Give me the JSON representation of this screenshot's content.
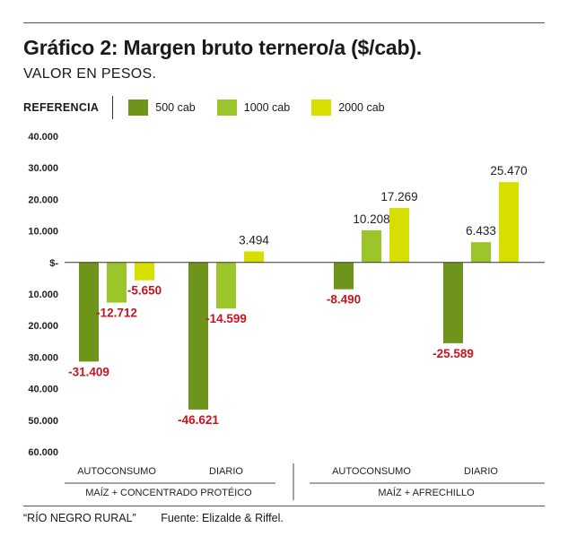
{
  "header": {
    "title": "Gráfico 2: Margen bruto ternero/a ($/cab).",
    "subtitle": "VALOR EN PESOS."
  },
  "legend": {
    "label": "REFERENCIA",
    "items": [
      {
        "name": "500 cab",
        "color": "#6f941b"
      },
      {
        "name": "1000 cab",
        "color": "#9bc52a"
      },
      {
        "name": "2000 cab",
        "color": "#d6df00"
      }
    ]
  },
  "footer": {
    "credit": "“RÍO NEGRO RURAL”",
    "source": "Fuente: Elizalde & Riffel."
  },
  "colors": {
    "positive_label": "#222222",
    "negative_label": "#c8141e"
  },
  "chart_data": {
    "type": "bar",
    "ylim": [
      -60000,
      40000
    ],
    "yticks": [
      {
        "value": 40000,
        "label": "40.000"
      },
      {
        "value": 30000,
        "label": "30.000"
      },
      {
        "value": 20000,
        "label": "20.000"
      },
      {
        "value": 10000,
        "label": "10.000"
      },
      {
        "value": 0,
        "label": "$-"
      },
      {
        "value": -10000,
        "label": "10.000"
      },
      {
        "value": -20000,
        "label": "20.000"
      },
      {
        "value": -30000,
        "label": "30.000"
      },
      {
        "value": -40000,
        "label": "40.000"
      },
      {
        "value": -50000,
        "label": "50.000"
      },
      {
        "value": -60000,
        "label": "60.000"
      }
    ],
    "groups": [
      {
        "label": "MAÍZ + CONCENTRADO PROTÉICO",
        "categories": [
          "AUTOCONSUMO",
          "DIARIO"
        ]
      },
      {
        "label": "MAÍZ + AFRECHILLO",
        "categories": [
          "AUTOCONSUMO",
          "DIARIO"
        ]
      }
    ],
    "categories": [
      "AUTOCONSUMO",
      "DIARIO",
      "AUTOCONSUMO",
      "DIARIO"
    ],
    "series": [
      {
        "name": "500 cab",
        "values": [
          -31409,
          -46621,
          -8490,
          -25589
        ],
        "labels": [
          "-31.409",
          "-46.621",
          "-8.490",
          "-25.589"
        ]
      },
      {
        "name": "1000 cab",
        "values": [
          -12712,
          -14599,
          10208,
          6433
        ],
        "labels": [
          "-12.712",
          "-14.599",
          "10.208",
          "6.433"
        ]
      },
      {
        "name": "2000 cab",
        "values": [
          -5650,
          3494,
          17269,
          25470
        ],
        "labels": [
          "-5.650",
          "3.494",
          "17.269",
          "25.470"
        ]
      }
    ]
  }
}
